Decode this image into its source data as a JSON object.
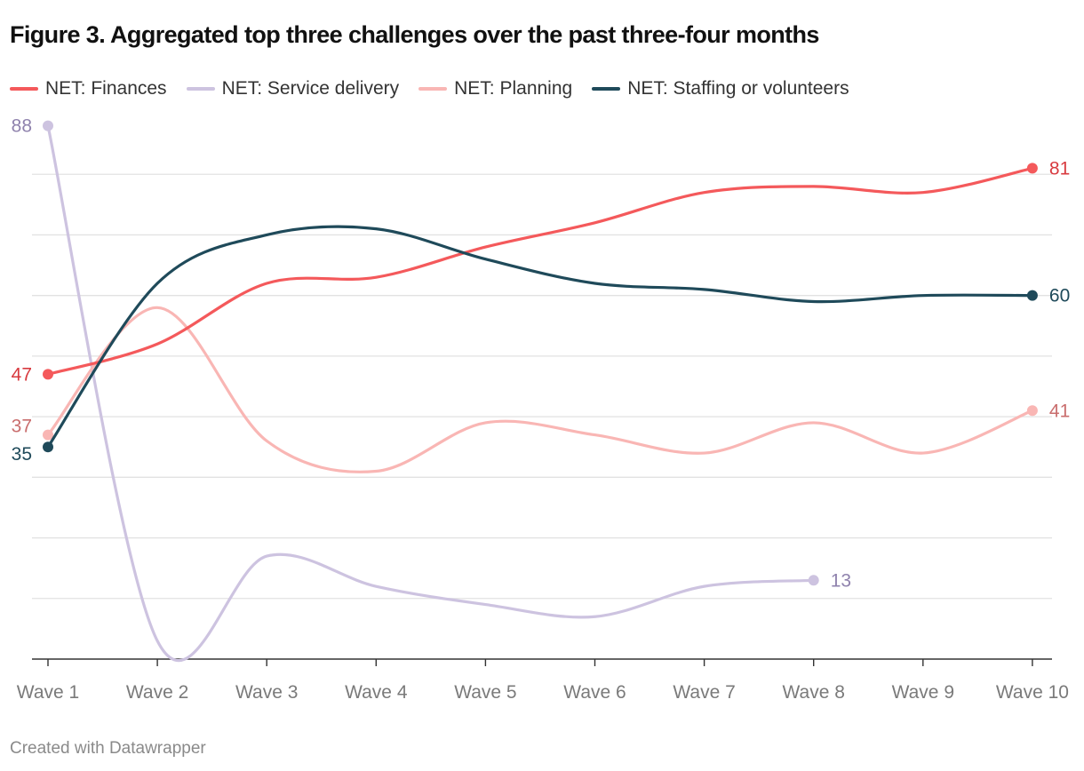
{
  "title": "Figure 3. Aggregated top three challenges over the past three-four months",
  "footer": "Created with Datawrapper",
  "chart_data": {
    "type": "line",
    "title": "Figure 3. Aggregated top three challenges over the past three-four months",
    "xlabel": "",
    "ylabel": "",
    "ylim": [
      0,
      90
    ],
    "grid": true,
    "legend_position": "top",
    "categories": [
      "Wave 1",
      "Wave 2",
      "Wave 3",
      "Wave 4",
      "Wave 5",
      "Wave 6",
      "Wave 7",
      "Wave 8",
      "Wave 9",
      "Wave 10"
    ],
    "series": [
      {
        "name": "NET: Finances",
        "color": "#f4595b",
        "label_color": "#d83a3f",
        "values": [
          47,
          52,
          62,
          63,
          68,
          72,
          77,
          78,
          77,
          81
        ],
        "start_label": "47",
        "end_label": "81"
      },
      {
        "name": "NET: Service delivery",
        "color": "#cdc3e0",
        "label_color": "#8f82ad",
        "values": [
          88,
          3,
          17,
          12,
          9,
          7,
          12,
          13,
          null,
          null
        ],
        "start_label": "88",
        "end_label": "13"
      },
      {
        "name": "NET: Planning",
        "color": "#f9b6b4",
        "label_color": "#c96d6d",
        "values": [
          37,
          58,
          36,
          31,
          39,
          37,
          34,
          39,
          34,
          41
        ],
        "start_label": "37",
        "end_label": "41"
      },
      {
        "name": "NET: Staffing or volunteers",
        "color": "#1f4a5a",
        "label_color": "#1f4a5a",
        "values": [
          35,
          62,
          70,
          71,
          66,
          62,
          61,
          59,
          60,
          60
        ],
        "start_label": "35",
        "end_label": "60"
      }
    ]
  }
}
